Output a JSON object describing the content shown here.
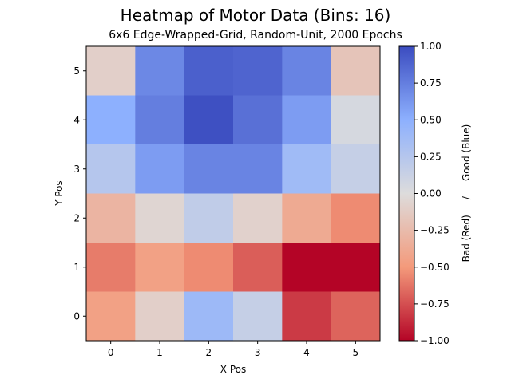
{
  "chart_data": {
    "type": "heatmap",
    "title": "Heatmap of Motor Data (Bins: 16)",
    "subtitle": "6x6 Edge-Wrapped-Grid, Random-Unit, 2000 Epochs",
    "xlabel": "X Pos",
    "ylabel": "Y Pos",
    "x_ticks": [
      "0",
      "1",
      "2",
      "3",
      "4",
      "5"
    ],
    "y_ticks": [
      "0",
      "1",
      "2",
      "3",
      "4",
      "5"
    ],
    "colormap": "coolwarm_r",
    "colorbar": {
      "label": "Bad (Red)     /     Good (Blue)",
      "range": [
        -1.0,
        1.0
      ],
      "ticks": [
        "−1.00",
        "−0.75",
        "−0.50",
        "−0.25",
        "0.00",
        "0.25",
        "0.50",
        "0.75",
        "1.00"
      ],
      "tick_values": [
        -1.0,
        -0.75,
        -0.5,
        -0.25,
        0.0,
        0.25,
        0.5,
        0.75,
        1.0
      ]
    },
    "rows_y_descending": [
      5,
      4,
      3,
      2,
      1,
      0
    ],
    "values": [
      [
        -0.1,
        0.7,
        0.9,
        0.88,
        0.72,
        -0.18
      ],
      [
        0.5,
        0.75,
        0.98,
        0.82,
        0.6,
        0.05
      ],
      [
        0.25,
        0.6,
        0.72,
        0.72,
        0.38,
        0.15
      ],
      [
        -0.3,
        -0.05,
        0.18,
        -0.08,
        -0.38,
        -0.55
      ],
      [
        -0.6,
        -0.45,
        -0.55,
        -0.7,
        -1.0,
        -1.0
      ],
      [
        -0.45,
        -0.1,
        0.4,
        0.15,
        -0.82,
        -0.68
      ]
    ]
  }
}
